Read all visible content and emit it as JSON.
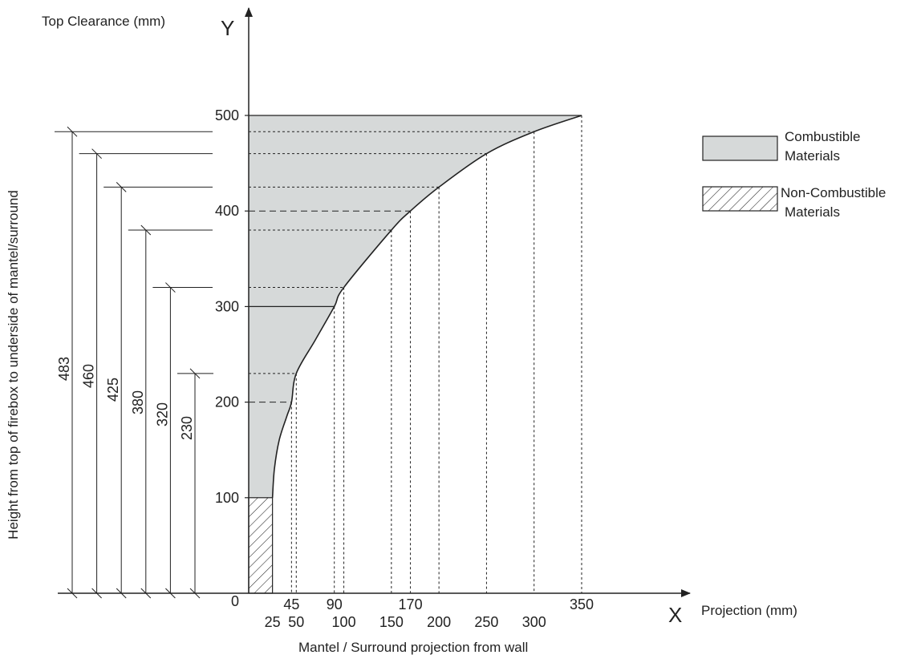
{
  "chart_data": {
    "type": "area",
    "yaxis_title": "Top Clearance (mm)",
    "xaxis_title": "Projection (mm)",
    "y_letter": "Y",
    "x_letter": "X",
    "bottom_caption": "Mantel / Surround projection from wall",
    "side_caption": "Height from top of firebox to underside of mantel/surround",
    "y_ticks": [
      {
        "value": 0,
        "label": "0"
      },
      {
        "value": 100,
        "label": "100"
      },
      {
        "value": 200,
        "label": "200"
      },
      {
        "value": 300,
        "label": "300"
      },
      {
        "value": 400,
        "label": "400"
      },
      {
        "value": 500,
        "label": "500"
      }
    ],
    "x_ticks_upper": [
      {
        "value": 45,
        "label": "45"
      },
      {
        "value": 90,
        "label": "90"
      },
      {
        "value": 170,
        "label": "170"
      },
      {
        "value": 350,
        "label": "350"
      }
    ],
    "x_ticks_lower": [
      {
        "value": 25,
        "label": "25"
      },
      {
        "value": 50,
        "label": "50"
      },
      {
        "value": 100,
        "label": "100"
      },
      {
        "value": 150,
        "label": "150"
      },
      {
        "value": 200,
        "label": "200"
      },
      {
        "value": 250,
        "label": "250"
      },
      {
        "value": 300,
        "label": "300"
      }
    ],
    "curve": [
      {
        "x": 25,
        "y": 100
      },
      {
        "x": 27,
        "y": 130
      },
      {
        "x": 32,
        "y": 160
      },
      {
        "x": 40,
        "y": 185
      },
      {
        "x": 45,
        "y": 200
      },
      {
        "x": 50,
        "y": 230
      },
      {
        "x": 70,
        "y": 265
      },
      {
        "x": 90,
        "y": 300
      },
      {
        "x": 100,
        "y": 320
      },
      {
        "x": 150,
        "y": 380
      },
      {
        "x": 170,
        "y": 400
      },
      {
        "x": 200,
        "y": 425
      },
      {
        "x": 250,
        "y": 460
      },
      {
        "x": 300,
        "y": 483
      },
      {
        "x": 350,
        "y": 500
      }
    ],
    "guides": [
      {
        "x": 45,
        "y": 200,
        "style": "dashed"
      },
      {
        "x": 50,
        "y": 230,
        "style": "dotted"
      },
      {
        "x": 90,
        "y": 300,
        "style": "solid"
      },
      {
        "x": 100,
        "y": 320,
        "style": "dotted"
      },
      {
        "x": 150,
        "y": 380,
        "style": "dotted"
      },
      {
        "x": 170,
        "y": 400,
        "style": "dashed"
      },
      {
        "x": 200,
        "y": 425,
        "style": "dotted"
      },
      {
        "x": 250,
        "y": 460,
        "style": "dotted"
      },
      {
        "x": 300,
        "y": 483,
        "style": "dotted"
      },
      {
        "x": 350,
        "y": 500,
        "style": "dashed"
      }
    ],
    "non_combustible_zone": {
      "x_max": 25,
      "y_max": 100
    },
    "dimensions": [
      {
        "value": 483,
        "label": "483"
      },
      {
        "value": 460,
        "label": "460"
      },
      {
        "value": 425,
        "label": "425"
      },
      {
        "value": 380,
        "label": "380"
      },
      {
        "value": 320,
        "label": "320"
      },
      {
        "value": 230,
        "label": "230"
      }
    ],
    "legend": [
      {
        "label_line1": "Combustible",
        "label_line2": "Materials",
        "fill": "solid"
      },
      {
        "label_line1": "Non-Combustible",
        "label_line2": "Materials",
        "fill": "hatch"
      }
    ],
    "xlim": [
      0,
      350
    ],
    "ylim": [
      0,
      500
    ],
    "grid": false,
    "legend_position": "top-right",
    "colors": {
      "combustible_fill": "#d6d9d9",
      "line": "#222222"
    }
  }
}
